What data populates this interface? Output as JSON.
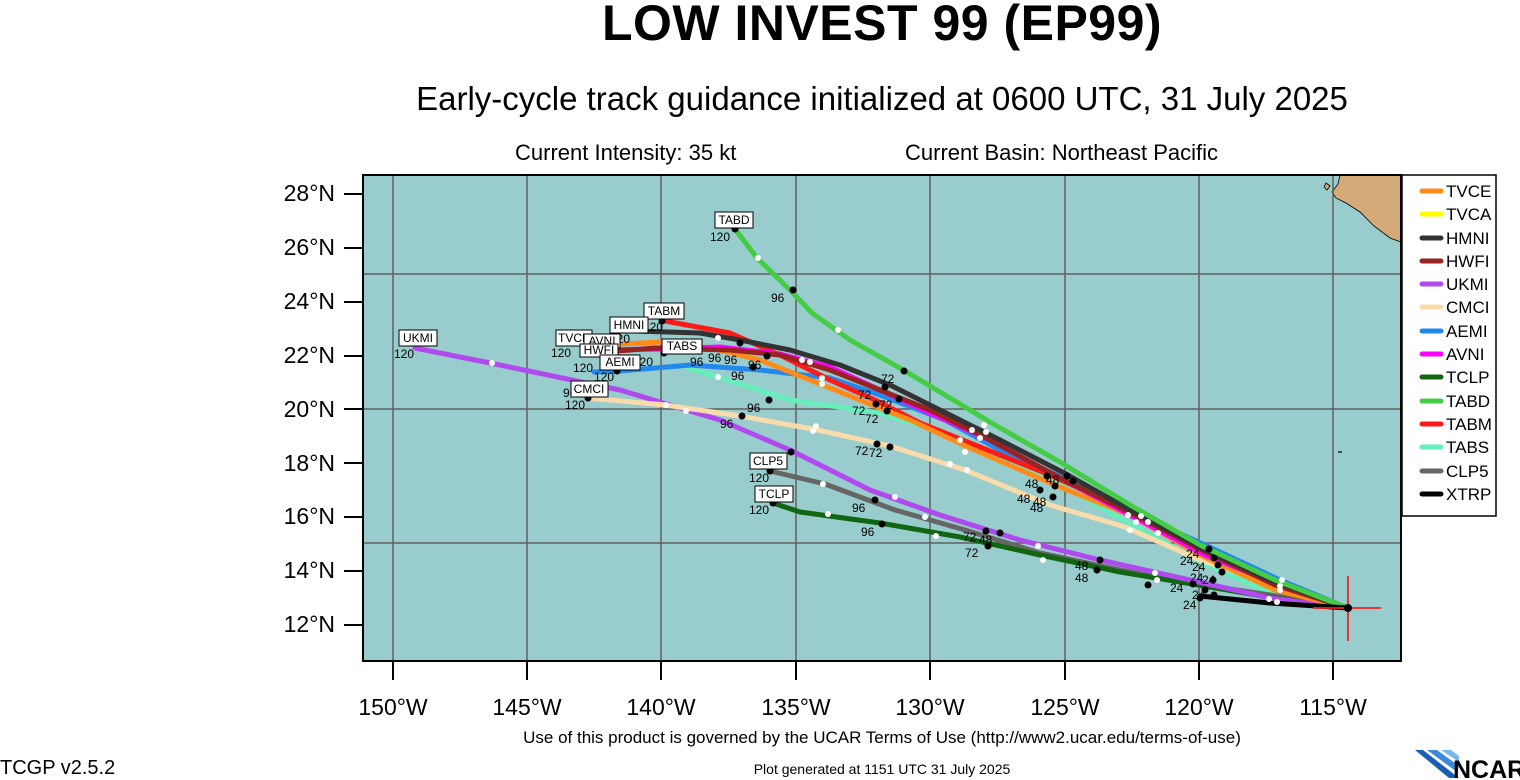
{
  "header": {
    "title": "LOW INVEST 99 (EP99)",
    "subtitle": "Early-cycle track guidance initialized at 0600 UTC, 31 July 2025",
    "intensity": "Current Intensity: 35 kt",
    "basin": "Current Basin: Northeast Pacific"
  },
  "axes": {
    "lat_labels": [
      "28°N",
      "26°N",
      "24°N",
      "22°N",
      "20°N",
      "18°N",
      "16°N",
      "14°N",
      "12°N"
    ],
    "lon_labels": [
      "150°W",
      "145°W",
      "140°W",
      "135°W",
      "130°W",
      "125°W",
      "120°W",
      "115°W"
    ]
  },
  "legend": [
    {
      "name": "TVCE",
      "color": "#ff8c1a"
    },
    {
      "name": "TVCA",
      "color": "#ffff00"
    },
    {
      "name": "HMNI",
      "color": "#333333"
    },
    {
      "name": "HWFI",
      "color": "#992222"
    },
    {
      "name": "UKMI",
      "color": "#b04aee"
    },
    {
      "name": "CMCI",
      "color": "#fadbac"
    },
    {
      "name": "AEMI",
      "color": "#2288ee"
    },
    {
      "name": "AVNI",
      "color": "#ff00ff"
    },
    {
      "name": "TCLP",
      "color": "#116611"
    },
    {
      "name": "TABD",
      "color": "#44cc44"
    },
    {
      "name": "TABM",
      "color": "#ff1a1a"
    },
    {
      "name": "TABS",
      "color": "#66eebb"
    },
    {
      "name": "CLP5",
      "color": "#666666"
    },
    {
      "name": "XTRP",
      "color": "#000000"
    }
  ],
  "colors": {
    "ocean": "#99cccc",
    "land": "#d4aa78",
    "grid": "#606060",
    "storm_marker": "#ee2222"
  },
  "map_data": {
    "current_position": {
      "lat": 12.6,
      "lon": -114.5
    },
    "end_labels": [
      "TABD",
      "TABM",
      "HMNI",
      "UKMI",
      "TVCE",
      "AVNI",
      "HWFI",
      "AEMI",
      "TABS",
      "CMCI",
      "CLP5",
      "TCLP"
    ],
    "hour_labels": [
      "24",
      "48",
      "72",
      "96",
      "120"
    ]
  },
  "footer": {
    "terms": "Use of this product is governed by the UCAR Terms of Use (http://www2.ucar.edu/terms-of-use)",
    "version": "TCGP v2.5.2",
    "generated": "Plot generated at 1151 UTC   31 July 2025",
    "logo_text": "NCAR"
  }
}
